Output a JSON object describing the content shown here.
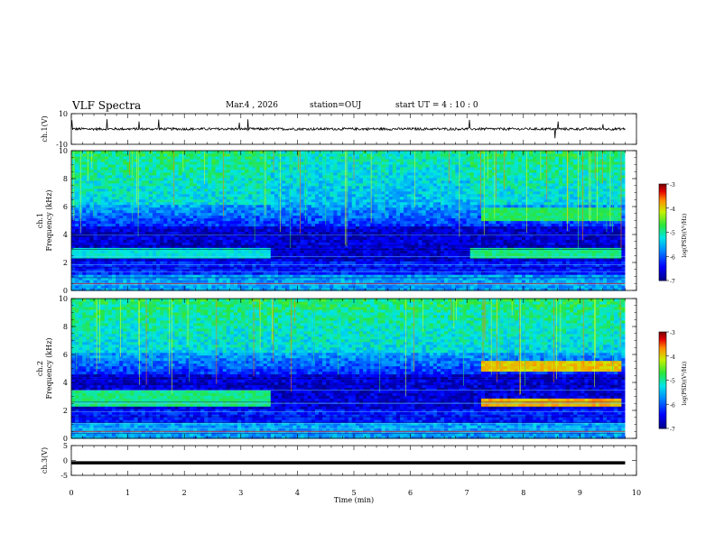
{
  "header": {
    "title": "VLF Spectra",
    "date": "Mar.4 , 2026",
    "station": "station=OUJ",
    "start": "start UT = 4 : 10 : 0"
  },
  "chart_data": [
    {
      "type": "line",
      "ylabel": "ch.1(V)",
      "ylim": [
        -10,
        10
      ],
      "yticks": [
        "10",
        "-10"
      ],
      "series": [
        {
          "description": "ch.1 waveform amplitude envelope",
          "x": [
            0,
            10
          ],
          "y": [
            0,
            0
          ]
        }
      ]
    },
    {
      "type": "heatmap",
      "ylabel_line1": "ch.1",
      "ylabel_line2": "Frequency (kHz)",
      "ylim": [
        0,
        10
      ],
      "yticks": [
        "0",
        "2",
        "4",
        "6",
        "8",
        "10"
      ],
      "colorbar": {
        "label": "log(PSD)(V²/Hz)",
        "ticks": [
          "-3",
          "-4",
          "-5",
          "-6",
          "-7"
        ],
        "range": [
          -7,
          -3
        ]
      },
      "bands": [
        {
          "f_lo": 5.0,
          "f_hi": 5.8,
          "t_start": 7.2,
          "t_end": 9.7,
          "level": -4.8
        },
        {
          "f_lo": 2.3,
          "f_hi": 2.9,
          "t_start": 0.0,
          "t_end": 3.5,
          "level": -5.2
        },
        {
          "f_lo": 2.3,
          "f_hi": 2.9,
          "t_start": 7.0,
          "t_end": 9.7,
          "level": -4.9
        }
      ]
    },
    {
      "type": "heatmap",
      "ylabel_line1": "ch.2",
      "ylabel_line2": "Frequency (kHz)",
      "ylim": [
        0,
        10
      ],
      "yticks": [
        "0",
        "2",
        "4",
        "6",
        "8",
        "10"
      ],
      "colorbar": {
        "label": "log(PSD)(V²/Hz)",
        "ticks": [
          "-3",
          "-4",
          "-5",
          "-6",
          "-7"
        ],
        "range": [
          -7,
          -3
        ]
      },
      "bands": [
        {
          "f_lo": 4.8,
          "f_hi": 5.4,
          "t_start": 7.2,
          "t_end": 9.7,
          "level": -3.9
        },
        {
          "f_lo": 2.2,
          "f_hi": 3.4,
          "t_start": 0.0,
          "t_end": 3.5,
          "level": -4.9
        },
        {
          "f_lo": 2.2,
          "f_hi": 2.8,
          "t_start": 7.2,
          "t_end": 9.7,
          "level": -3.8
        }
      ]
    },
    {
      "type": "line",
      "ylabel": "ch.3(V)",
      "ylim": [
        -5,
        5
      ],
      "yticks": [
        "5",
        "0",
        "-5"
      ],
      "series": [
        {
          "description": "ch.3 constant level",
          "x": [
            0,
            9.8
          ],
          "y": [
            -0.8,
            -0.8
          ]
        }
      ]
    }
  ],
  "xaxis": {
    "label": "Time (min)",
    "ticks": [
      "0",
      "1",
      "2",
      "3",
      "4",
      "5",
      "6",
      "7",
      "8",
      "9",
      "10"
    ],
    "xlim": [
      0,
      10
    ]
  }
}
